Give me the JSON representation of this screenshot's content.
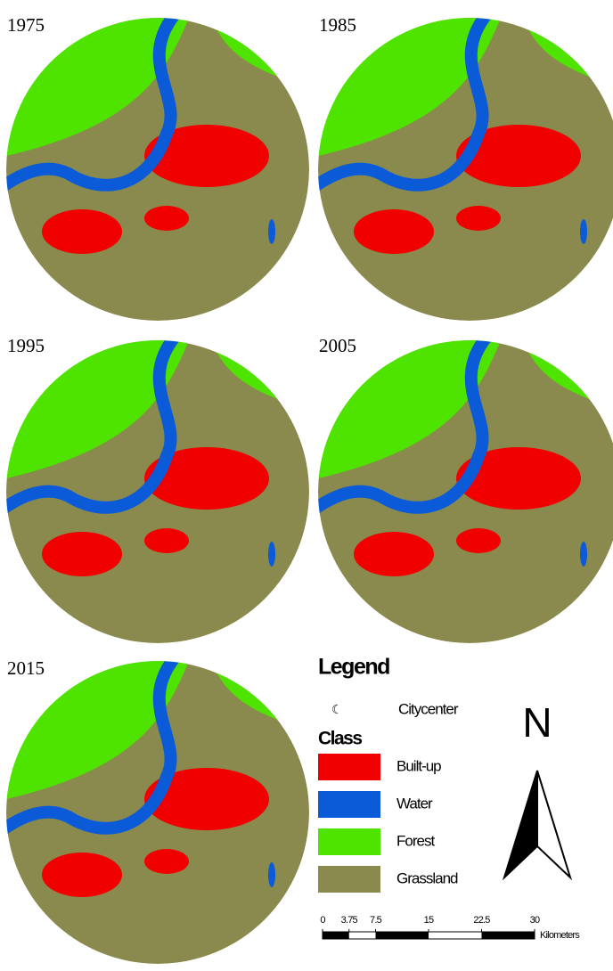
{
  "maps": [
    {
      "label": "1975"
    },
    {
      "label": "1985"
    },
    {
      "label": "1995"
    },
    {
      "label": "2005"
    },
    {
      "label": "2015"
    }
  ],
  "legend": {
    "title": "Legend",
    "citycenter": "Citycenter",
    "class_title": "Class",
    "classes": [
      {
        "name": "Built-up",
        "color": "#f00000"
      },
      {
        "name": "Water",
        "color": "#0b5bd8"
      },
      {
        "name": "Forest",
        "color": "#4fe400"
      },
      {
        "name": "Grassland",
        "color": "#8a8a4e"
      }
    ]
  },
  "north": "N",
  "scale_bar": {
    "ticks": [
      0,
      3.75,
      7.5,
      15,
      22.5,
      30
    ],
    "unit": "Kilometers"
  }
}
